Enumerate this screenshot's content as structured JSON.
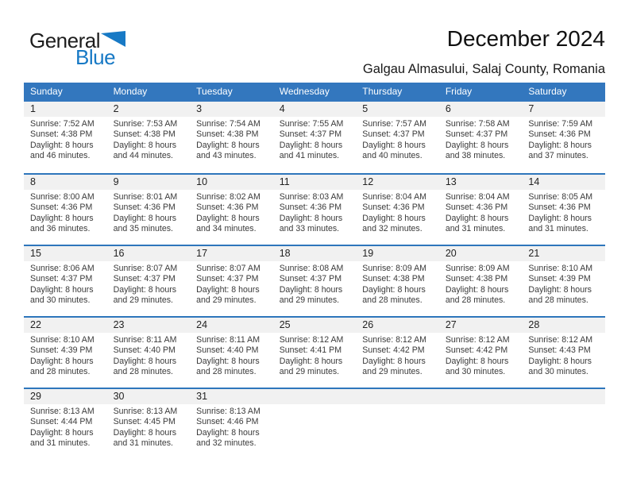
{
  "logo": {
    "part1": "General",
    "part2": "Blue",
    "triangle_icon": "blue-flag-triangle"
  },
  "header": {
    "title": "December 2024",
    "subtitle": "Galgau Almasului, Salaj County, Romania"
  },
  "colors": {
    "header_blue": "#3377BE",
    "separator_blue": "#2E76BC",
    "day_strip_gray": "#F1F1F1",
    "logo_blue": "#1779C5"
  },
  "calendar": {
    "weekday_headers": [
      "Sunday",
      "Monday",
      "Tuesday",
      "Wednesday",
      "Thursday",
      "Friday",
      "Saturday"
    ],
    "labels": {
      "sunrise": "Sunrise:",
      "sunset": "Sunset:",
      "daylight": "Daylight:"
    },
    "start_col": 0,
    "rows": 5,
    "days": [
      {
        "day": "1",
        "sunrise": "7:52 AM",
        "sunset": "4:38 PM",
        "daylight": "8 hours",
        "daylight_rest": "and 46 minutes."
      },
      {
        "day": "2",
        "sunrise": "7:53 AM",
        "sunset": "4:38 PM",
        "daylight": "8 hours",
        "daylight_rest": "and 44 minutes."
      },
      {
        "day": "3",
        "sunrise": "7:54 AM",
        "sunset": "4:38 PM",
        "daylight": "8 hours",
        "daylight_rest": "and 43 minutes."
      },
      {
        "day": "4",
        "sunrise": "7:55 AM",
        "sunset": "4:37 PM",
        "daylight": "8 hours",
        "daylight_rest": "and 41 minutes."
      },
      {
        "day": "5",
        "sunrise": "7:57 AM",
        "sunset": "4:37 PM",
        "daylight": "8 hours",
        "daylight_rest": "and 40 minutes."
      },
      {
        "day": "6",
        "sunrise": "7:58 AM",
        "sunset": "4:37 PM",
        "daylight": "8 hours",
        "daylight_rest": "and 38 minutes."
      },
      {
        "day": "7",
        "sunrise": "7:59 AM",
        "sunset": "4:36 PM",
        "daylight": "8 hours",
        "daylight_rest": "and 37 minutes."
      },
      {
        "day": "8",
        "sunrise": "8:00 AM",
        "sunset": "4:36 PM",
        "daylight": "8 hours",
        "daylight_rest": "and 36 minutes."
      },
      {
        "day": "9",
        "sunrise": "8:01 AM",
        "sunset": "4:36 PM",
        "daylight": "8 hours",
        "daylight_rest": "and 35 minutes."
      },
      {
        "day": "10",
        "sunrise": "8:02 AM",
        "sunset": "4:36 PM",
        "daylight": "8 hours",
        "daylight_rest": "and 34 minutes."
      },
      {
        "day": "11",
        "sunrise": "8:03 AM",
        "sunset": "4:36 PM",
        "daylight": "8 hours",
        "daylight_rest": "and 33 minutes."
      },
      {
        "day": "12",
        "sunrise": "8:04 AM",
        "sunset": "4:36 PM",
        "daylight": "8 hours",
        "daylight_rest": "and 32 minutes."
      },
      {
        "day": "13",
        "sunrise": "8:04 AM",
        "sunset": "4:36 PM",
        "daylight": "8 hours",
        "daylight_rest": "and 31 minutes."
      },
      {
        "day": "14",
        "sunrise": "8:05 AM",
        "sunset": "4:36 PM",
        "daylight": "8 hours",
        "daylight_rest": "and 31 minutes."
      },
      {
        "day": "15",
        "sunrise": "8:06 AM",
        "sunset": "4:37 PM",
        "daylight": "8 hours",
        "daylight_rest": "and 30 minutes."
      },
      {
        "day": "16",
        "sunrise": "8:07 AM",
        "sunset": "4:37 PM",
        "daylight": "8 hours",
        "daylight_rest": "and 29 minutes."
      },
      {
        "day": "17",
        "sunrise": "8:07 AM",
        "sunset": "4:37 PM",
        "daylight": "8 hours",
        "daylight_rest": "and 29 minutes."
      },
      {
        "day": "18",
        "sunrise": "8:08 AM",
        "sunset": "4:37 PM",
        "daylight": "8 hours",
        "daylight_rest": "and 29 minutes."
      },
      {
        "day": "19",
        "sunrise": "8:09 AM",
        "sunset": "4:38 PM",
        "daylight": "8 hours",
        "daylight_rest": "and 28 minutes."
      },
      {
        "day": "20",
        "sunrise": "8:09 AM",
        "sunset": "4:38 PM",
        "daylight": "8 hours",
        "daylight_rest": "and 28 minutes."
      },
      {
        "day": "21",
        "sunrise": "8:10 AM",
        "sunset": "4:39 PM",
        "daylight": "8 hours",
        "daylight_rest": "and 28 minutes."
      },
      {
        "day": "22",
        "sunrise": "8:10 AM",
        "sunset": "4:39 PM",
        "daylight": "8 hours",
        "daylight_rest": "and 28 minutes."
      },
      {
        "day": "23",
        "sunrise": "8:11 AM",
        "sunset": "4:40 PM",
        "daylight": "8 hours",
        "daylight_rest": "and 28 minutes."
      },
      {
        "day": "24",
        "sunrise": "8:11 AM",
        "sunset": "4:40 PM",
        "daylight": "8 hours",
        "daylight_rest": "and 28 minutes."
      },
      {
        "day": "25",
        "sunrise": "8:12 AM",
        "sunset": "4:41 PM",
        "daylight": "8 hours",
        "daylight_rest": "and 29 minutes."
      },
      {
        "day": "26",
        "sunrise": "8:12 AM",
        "sunset": "4:42 PM",
        "daylight": "8 hours",
        "daylight_rest": "and 29 minutes."
      },
      {
        "day": "27",
        "sunrise": "8:12 AM",
        "sunset": "4:42 PM",
        "daylight": "8 hours",
        "daylight_rest": "and 30 minutes."
      },
      {
        "day": "28",
        "sunrise": "8:12 AM",
        "sunset": "4:43 PM",
        "daylight": "8 hours",
        "daylight_rest": "and 30 minutes."
      },
      {
        "day": "29",
        "sunrise": "8:13 AM",
        "sunset": "4:44 PM",
        "daylight": "8 hours",
        "daylight_rest": "and 31 minutes."
      },
      {
        "day": "30",
        "sunrise": "8:13 AM",
        "sunset": "4:45 PM",
        "daylight": "8 hours",
        "daylight_rest": "and 31 minutes."
      },
      {
        "day": "31",
        "sunrise": "8:13 AM",
        "sunset": "4:46 PM",
        "daylight": "8 hours",
        "daylight_rest": "and 32 minutes."
      }
    ]
  }
}
